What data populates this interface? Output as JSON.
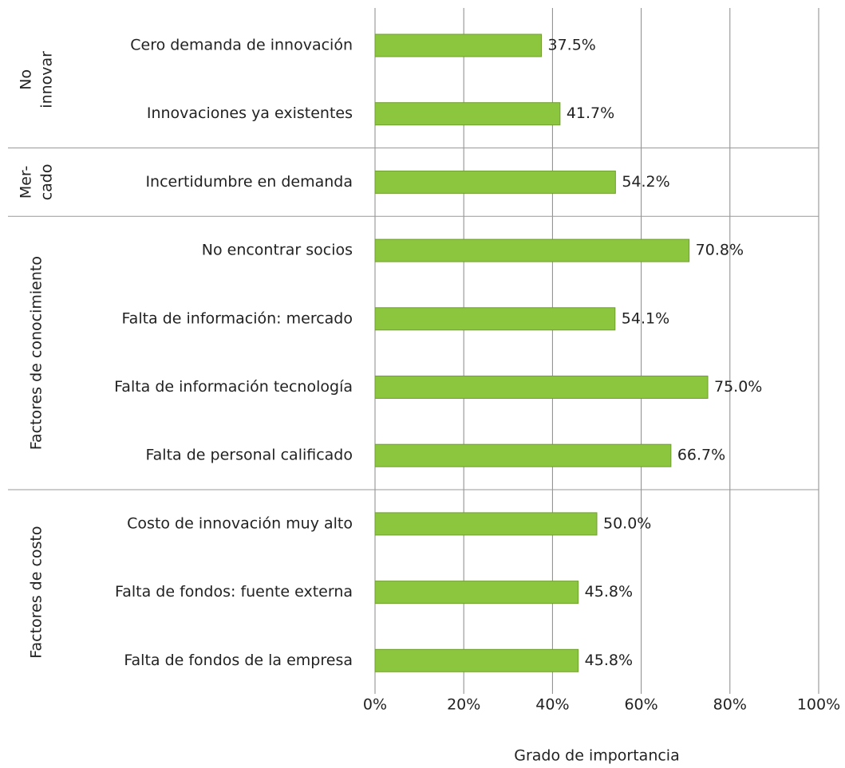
{
  "chart_data": {
    "type": "bar",
    "orientation": "horizontal",
    "xlabel": "Grado de importancia",
    "xlim": [
      0,
      100
    ],
    "xticks": [
      {
        "value": 0,
        "label": "0%"
      },
      {
        "value": 20,
        "label": "20%"
      },
      {
        "value": 40,
        "label": "40%"
      },
      {
        "value": 60,
        "label": "60%"
      },
      {
        "value": 80,
        "label": "80%"
      },
      {
        "value": 100,
        "label": "100%"
      }
    ],
    "grid": true,
    "color": "#8cc63f",
    "groups": [
      {
        "name": [
          "No",
          "innovar"
        ],
        "categories": [
          "Cero demanda de innovación",
          "Innovaciones ya existentes"
        ],
        "values": [
          37.5,
          41.7
        ],
        "value_labels": [
          "37.5%",
          "41.7%"
        ]
      },
      {
        "name": [
          "Mer-",
          "cado"
        ],
        "categories": [
          "Incertidumbre en demanda"
        ],
        "values": [
          54.2
        ],
        "value_labels": [
          "54.2%"
        ]
      },
      {
        "name": [
          "Factores de conocimiento"
        ],
        "categories": [
          "No encontrar socios",
          "Falta de información: mercado",
          "Falta de información tecnología",
          "Falta de personal calificado"
        ],
        "values": [
          70.8,
          54.1,
          75.0,
          66.7
        ],
        "value_labels": [
          "70.8%",
          "54.1%",
          "75.0%",
          "66.7%"
        ]
      },
      {
        "name": [
          "Factores de costo"
        ],
        "categories": [
          "Costo de innovación muy alto",
          "Falta de fondos: fuente externa",
          "Falta de fondos de la empresa"
        ],
        "values": [
          50.0,
          45.8,
          45.8
        ],
        "value_labels": [
          "50.0%",
          "45.8%",
          "45.8%"
        ]
      }
    ]
  }
}
